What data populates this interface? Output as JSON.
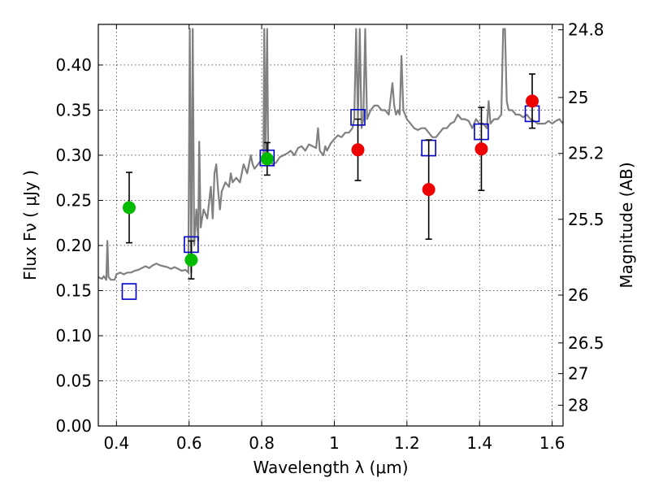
{
  "chart_data": {
    "type": "scatter",
    "xlabel": "Wavelength  λ (μm)",
    "ylabel_left": "Flux  Fν  ( μJy )",
    "ylabel_right": "Magnitude (AB)",
    "xlim": [
      0.35,
      1.63
    ],
    "ylim": [
      0.0,
      0.445
    ],
    "grid": true,
    "x_ticks": [
      {
        "value": 0.4,
        "label": "0.4"
      },
      {
        "value": 0.6,
        "label": "0.6"
      },
      {
        "value": 0.8,
        "label": "0.8"
      },
      {
        "value": 1.0,
        "label": "1"
      },
      {
        "value": 1.2,
        "label": "1.2"
      },
      {
        "value": 1.4,
        "label": "1.4"
      },
      {
        "value": 1.6,
        "label": "1.6"
      }
    ],
    "y_ticks": [
      {
        "value": 0.0,
        "label": "0.00"
      },
      {
        "value": 0.05,
        "label": "0.05"
      },
      {
        "value": 0.1,
        "label": "0.10"
      },
      {
        "value": 0.15,
        "label": "0.15"
      },
      {
        "value": 0.2,
        "label": "0.20"
      },
      {
        "value": 0.25,
        "label": "0.25"
      },
      {
        "value": 0.3,
        "label": "0.30"
      },
      {
        "value": 0.35,
        "label": "0.35"
      },
      {
        "value": 0.4,
        "label": "0.40"
      }
    ],
    "right_ticks": [
      {
        "flux": 0.439,
        "label": "24.8"
      },
      {
        "flux": 0.364,
        "label": "25"
      },
      {
        "flux": 0.302,
        "label": "25.2"
      },
      {
        "flux": 0.229,
        "label": "25.5"
      },
      {
        "flux": 0.145,
        "label": "26"
      },
      {
        "flux": 0.092,
        "label": "26.5"
      },
      {
        "flux": 0.058,
        "label": "27"
      },
      {
        "flux": 0.023,
        "label": "28"
      }
    ],
    "series": [
      {
        "name": "model spectrum",
        "kind": "line",
        "color": "#808080",
        "points": [
          [
            0.35,
            0.165
          ],
          [
            0.36,
            0.163
          ],
          [
            0.365,
            0.166
          ],
          [
            0.372,
            0.162
          ],
          [
            0.375,
            0.205
          ],
          [
            0.378,
            0.165
          ],
          [
            0.385,
            0.162
          ],
          [
            0.395,
            0.162
          ],
          [
            0.4,
            0.168
          ],
          [
            0.41,
            0.17
          ],
          [
            0.42,
            0.168
          ],
          [
            0.43,
            0.17
          ],
          [
            0.44,
            0.17
          ],
          [
            0.45,
            0.172
          ],
          [
            0.46,
            0.173
          ],
          [
            0.47,
            0.175
          ],
          [
            0.48,
            0.177
          ],
          [
            0.49,
            0.175
          ],
          [
            0.5,
            0.178
          ],
          [
            0.51,
            0.18
          ],
          [
            0.52,
            0.178
          ],
          [
            0.53,
            0.177
          ],
          [
            0.54,
            0.176
          ],
          [
            0.55,
            0.174
          ],
          [
            0.56,
            0.176
          ],
          [
            0.57,
            0.174
          ],
          [
            0.58,
            0.172
          ],
          [
            0.59,
            0.173
          ],
          [
            0.598,
            0.17
          ],
          [
            0.602,
            0.44
          ],
          [
            0.606,
            0.17
          ],
          [
            0.61,
            0.44
          ],
          [
            0.614,
            0.2
          ],
          [
            0.62,
            0.24
          ],
          [
            0.625,
            0.205
          ],
          [
            0.628,
            0.315
          ],
          [
            0.632,
            0.22
          ],
          [
            0.64,
            0.24
          ],
          [
            0.65,
            0.23
          ],
          [
            0.66,
            0.265
          ],
          [
            0.665,
            0.23
          ],
          [
            0.67,
            0.28
          ],
          [
            0.675,
            0.29
          ],
          [
            0.68,
            0.26
          ],
          [
            0.685,
            0.24
          ],
          [
            0.69,
            0.26
          ],
          [
            0.7,
            0.27
          ],
          [
            0.71,
            0.265
          ],
          [
            0.715,
            0.28
          ],
          [
            0.72,
            0.27
          ],
          [
            0.73,
            0.275
          ],
          [
            0.74,
            0.27
          ],
          [
            0.75,
            0.29
          ],
          [
            0.76,
            0.28
          ],
          [
            0.77,
            0.3
          ],
          [
            0.775,
            0.29
          ],
          [
            0.78,
            0.285
          ],
          [
            0.79,
            0.29
          ],
          [
            0.8,
            0.295
          ],
          [
            0.805,
            0.3
          ],
          [
            0.807,
            0.44
          ],
          [
            0.81,
            0.3
          ],
          [
            0.815,
            0.44
          ],
          [
            0.818,
            0.3
          ],
          [
            0.83,
            0.29
          ],
          [
            0.84,
            0.292
          ],
          [
            0.85,
            0.298
          ],
          [
            0.86,
            0.3
          ],
          [
            0.87,
            0.302
          ],
          [
            0.88,
            0.305
          ],
          [
            0.89,
            0.3
          ],
          [
            0.9,
            0.308
          ],
          [
            0.91,
            0.31
          ],
          [
            0.92,
            0.305
          ],
          [
            0.93,
            0.312
          ],
          [
            0.94,
            0.31
          ],
          [
            0.95,
            0.308
          ],
          [
            0.955,
            0.33
          ],
          [
            0.96,
            0.305
          ],
          [
            0.97,
            0.3
          ],
          [
            0.975,
            0.31
          ],
          [
            0.98,
            0.305
          ],
          [
            0.99,
            0.313
          ],
          [
            1.0,
            0.318
          ],
          [
            1.01,
            0.322
          ],
          [
            1.02,
            0.32
          ],
          [
            1.03,
            0.325
          ],
          [
            1.04,
            0.325
          ],
          [
            1.05,
            0.33
          ],
          [
            1.055,
            0.34
          ],
          [
            1.06,
            0.44
          ],
          [
            1.065,
            0.34
          ],
          [
            1.07,
            0.44
          ],
          [
            1.075,
            0.33
          ],
          [
            1.08,
            0.34
          ],
          [
            1.085,
            0.44
          ],
          [
            1.09,
            0.34
          ],
          [
            1.1,
            0.35
          ],
          [
            1.11,
            0.355
          ],
          [
            1.12,
            0.355
          ],
          [
            1.13,
            0.35
          ],
          [
            1.14,
            0.35
          ],
          [
            1.15,
            0.345
          ],
          [
            1.16,
            0.38
          ],
          [
            1.165,
            0.355
          ],
          [
            1.17,
            0.345
          ],
          [
            1.175,
            0.35
          ],
          [
            1.18,
            0.345
          ],
          [
            1.185,
            0.41
          ],
          [
            1.19,
            0.35
          ],
          [
            1.2,
            0.34
          ],
          [
            1.21,
            0.335
          ],
          [
            1.22,
            0.33
          ],
          [
            1.23,
            0.328
          ],
          [
            1.24,
            0.33
          ],
          [
            1.25,
            0.33
          ],
          [
            1.26,
            0.325
          ],
          [
            1.27,
            0.32
          ],
          [
            1.28,
            0.32
          ],
          [
            1.29,
            0.325
          ],
          [
            1.3,
            0.33
          ],
          [
            1.31,
            0.33
          ],
          [
            1.32,
            0.335
          ],
          [
            1.33,
            0.337
          ],
          [
            1.34,
            0.345
          ],
          [
            1.35,
            0.34
          ],
          [
            1.36,
            0.34
          ],
          [
            1.37,
            0.338
          ],
          [
            1.38,
            0.33
          ],
          [
            1.39,
            0.34
          ],
          [
            1.4,
            0.335
          ],
          [
            1.41,
            0.335
          ],
          [
            1.42,
            0.33
          ],
          [
            1.425,
            0.36
          ],
          [
            1.43,
            0.335
          ],
          [
            1.44,
            0.34
          ],
          [
            1.45,
            0.34
          ],
          [
            1.46,
            0.345
          ],
          [
            1.465,
            0.44
          ],
          [
            1.47,
            0.44
          ],
          [
            1.475,
            0.36
          ],
          [
            1.48,
            0.35
          ],
          [
            1.49,
            0.35
          ],
          [
            1.5,
            0.345
          ],
          [
            1.51,
            0.345
          ],
          [
            1.52,
            0.342
          ],
          [
            1.53,
            0.345
          ],
          [
            1.54,
            0.34
          ],
          [
            1.55,
            0.338
          ],
          [
            1.56,
            0.335
          ],
          [
            1.57,
            0.335
          ],
          [
            1.58,
            0.335
          ],
          [
            1.59,
            0.338
          ],
          [
            1.6,
            0.335
          ],
          [
            1.61,
            0.338
          ],
          [
            1.62,
            0.34
          ],
          [
            1.63,
            0.335
          ]
        ]
      },
      {
        "name": "model photometry",
        "kind": "squares",
        "color": "#0000cc",
        "points": [
          [
            0.435,
            0.149
          ],
          [
            0.606,
            0.201
          ],
          [
            0.815,
            0.297
          ],
          [
            1.065,
            0.342
          ],
          [
            1.26,
            0.308
          ],
          [
            1.405,
            0.326
          ],
          [
            1.545,
            0.346
          ]
        ]
      },
      {
        "name": "observed (green)",
        "kind": "circles",
        "color": "#00bb00",
        "points": [
          {
            "x": 0.435,
            "y": 0.242,
            "err": 0.039
          },
          {
            "x": 0.606,
            "y": 0.184,
            "err": 0.021
          },
          {
            "x": 0.815,
            "y": 0.296,
            "err": 0.018
          }
        ]
      },
      {
        "name": "observed (red)",
        "kind": "circles",
        "color": "#ee0000",
        "points": [
          {
            "x": 1.065,
            "y": 0.306,
            "err": 0.034
          },
          {
            "x": 1.26,
            "y": 0.262,
            "err": 0.055
          },
          {
            "x": 1.405,
            "y": 0.307,
            "err": 0.046
          },
          {
            "x": 1.545,
            "y": 0.36,
            "err": 0.03
          }
        ]
      }
    ]
  }
}
